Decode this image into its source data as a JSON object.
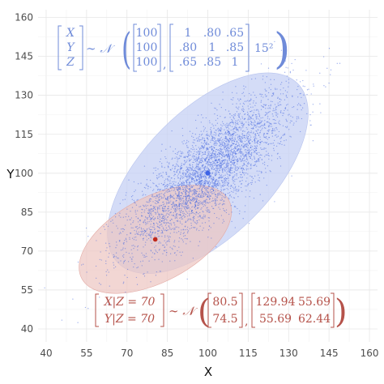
{
  "chart_data": {
    "type": "scatter",
    "xlabel": "X",
    "ylabel": "Y",
    "xlim": [
      37,
      163
    ],
    "ylim": [
      35,
      163
    ],
    "x_ticks": [
      "40",
      "55",
      "70",
      "85",
      "100",
      "115",
      "130",
      "145",
      "160"
    ],
    "y_ticks": [
      "40",
      "55",
      "70",
      "85",
      "100",
      "115",
      "130",
      "145",
      "160"
    ],
    "grid": true,
    "joint": {
      "mean": [
        100,
        100
      ],
      "ellipse": {
        "center": [
          100,
          100
        ],
        "semi_major": 48,
        "semi_minor": 24,
        "angle_deg": 45
      },
      "color": "#4a6be0",
      "fill": "#c5d0f4",
      "formula": {
        "vars": [
          "X",
          "Y",
          "Z"
        ],
        "dist": "∼ 𝒩",
        "mean": [
          "100",
          "100",
          "100"
        ],
        "cov": [
          [
            "1",
            ".80",
            ".65"
          ],
          [
            ".80",
            "1",
            ".85"
          ],
          [
            ".65",
            ".85",
            "1"
          ]
        ],
        "scale": "15²"
      }
    },
    "conditional": {
      "mean": [
        80.5,
        74.5
      ],
      "ellipse": {
        "center": [
          80.5,
          74.5
        ],
        "semi_major": 31.5,
        "semi_minor": 16,
        "angle_deg": 28
      },
      "color": "#b03a2e",
      "fill": "#ecc4c0",
      "formula": {
        "vars": [
          "X|Z = 70",
          "Y|Z = 70"
        ],
        "dist": "∼ 𝒩",
        "mean": [
          "80.5",
          "74.5"
        ],
        "cov": [
          [
            "129.94",
            "55.69"
          ],
          [
            "55.69",
            "62.44"
          ]
        ]
      }
    },
    "sample_points": 4000
  }
}
